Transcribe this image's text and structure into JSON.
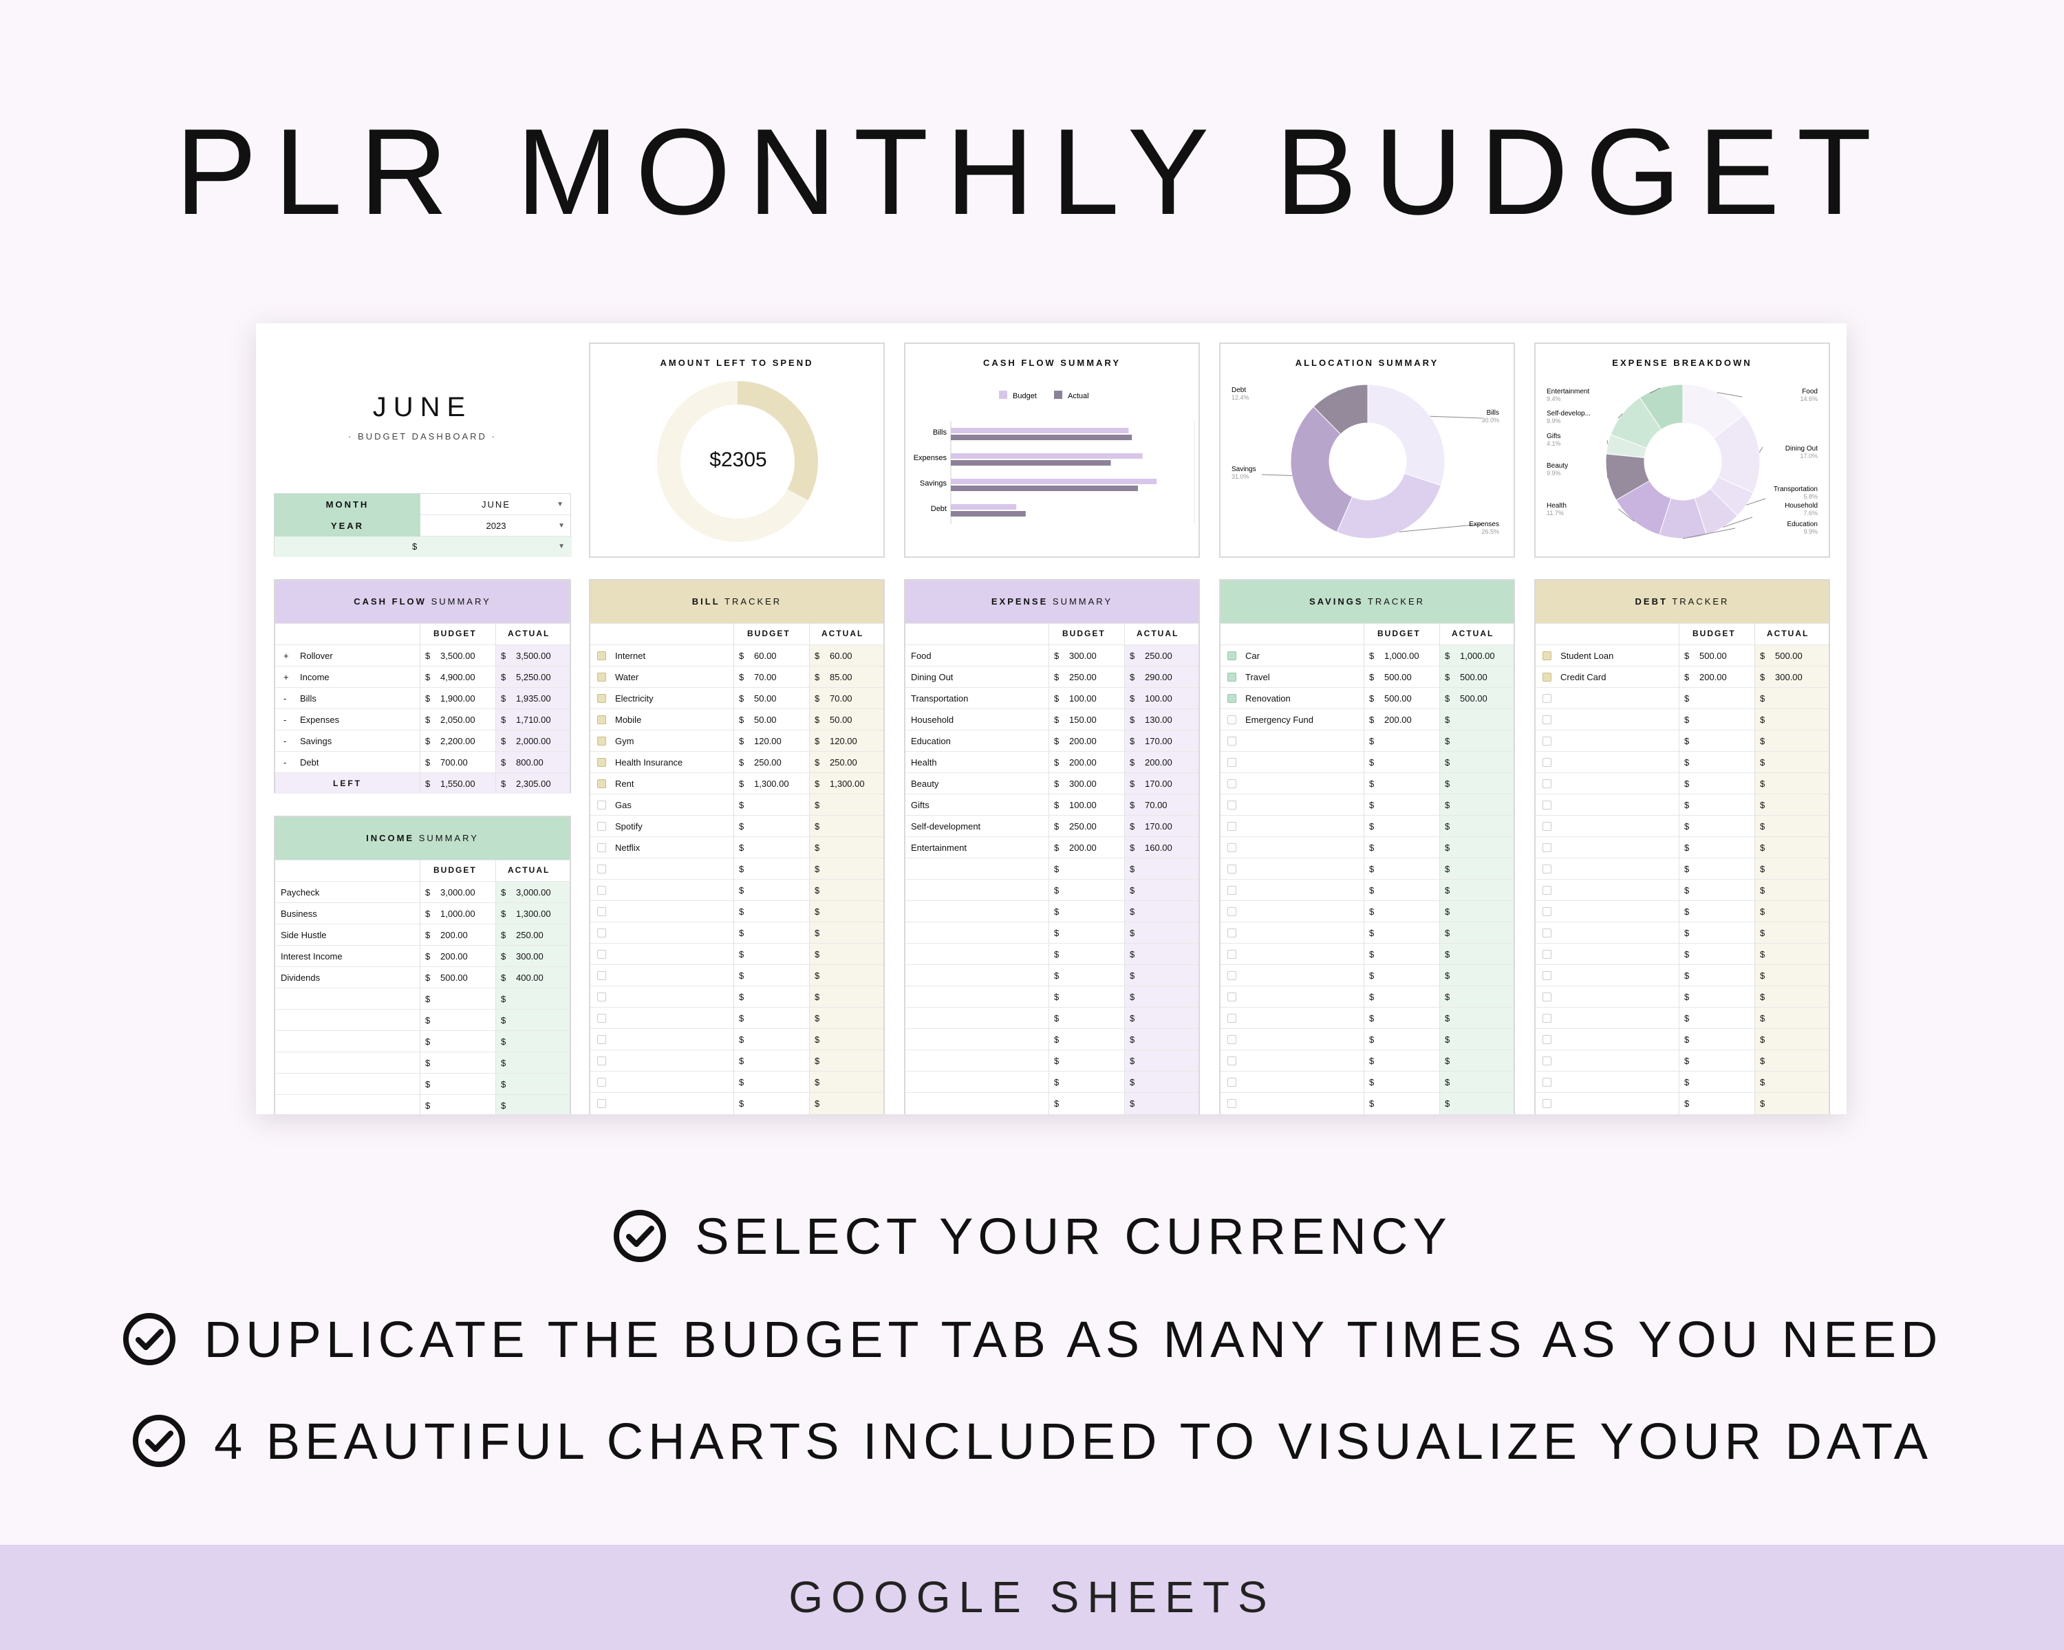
{
  "title": "PLR MONTHLY BUDGET",
  "dashboard": {
    "month_title": "JUNE",
    "subtitle": "BUDGET DASHBOARD",
    "month_label": "MONTH",
    "month_value": "JUNE",
    "year_label": "YEAR",
    "year_value": "2023",
    "currency_value": "$"
  },
  "amount_left": {
    "title": "AMOUNT LEFT TO SPEND",
    "value": "$2305",
    "fraction_left": 0.33
  },
  "cash_flow_chart": {
    "title": "CASH FLOW SUMMARY",
    "legend": [
      "Budget",
      "Actual"
    ],
    "colors": {
      "budget": "#d7c6ea",
      "actual": "#8d8199"
    },
    "chart_data": {
      "type": "bar",
      "orientation": "horizontal",
      "categories": [
        "Bills",
        "Expenses",
        "Savings",
        "Debt"
      ],
      "series": [
        {
          "name": "Budget",
          "values": [
            1900,
            2050,
            2200,
            700
          ]
        },
        {
          "name": "Actual",
          "values": [
            1935,
            1710,
            2000,
            800
          ]
        }
      ]
    }
  },
  "allocation_chart": {
    "title": "ALLOCATION SUMMARY",
    "chart_data": {
      "type": "pie",
      "labels": [
        "Bills",
        "Expenses",
        "Savings",
        "Debt"
      ],
      "values": [
        30.0,
        26.5,
        31.0,
        12.4
      ],
      "value_labels": [
        "30.0%",
        "26.5%",
        "31.0%",
        "12.4%"
      ],
      "colors": [
        "#efebf8",
        "#ddd0ee",
        "#b8a5cc",
        "#958a9c"
      ]
    }
  },
  "expense_chart": {
    "title": "EXPENSE BREAKDOWN",
    "chart_data": {
      "type": "pie",
      "labels": [
        "Food",
        "Dining Out",
        "Transportation",
        "Household",
        "Education",
        "Health",
        "Beauty",
        "Gifts",
        "Self-develop...",
        "Entertainment"
      ],
      "values": [
        14.6,
        17.0,
        5.8,
        7.6,
        9.9,
        11.7,
        9.9,
        4.1,
        9.9,
        9.4
      ],
      "value_labels": [
        "14.6%",
        "17.0%",
        "5.8%",
        "7.6%",
        "9.9%",
        "11.7%",
        "9.9%",
        "4.1%",
        "9.9%",
        "9.4%"
      ],
      "colors": [
        "#f6f3fb",
        "#efe9f7",
        "#ebe3f5",
        "#e3d7f0",
        "#d8c8ea",
        "#c9b4df",
        "#978c9e",
        "#dfeee4",
        "#cde7d6",
        "#b9dcc6"
      ]
    }
  },
  "cash_flow": {
    "title_bold": "CASH FLOW",
    "title_rest": "SUMMARY",
    "budget_header": "BUDGET",
    "actual_header": "ACTUAL",
    "rows": [
      {
        "sign": "+",
        "label": "Rollover",
        "budget": "3,500.00",
        "actual": "3,500.00"
      },
      {
        "sign": "+",
        "label": "Income",
        "budget": "4,900.00",
        "actual": "5,250.00"
      },
      {
        "sign": "-",
        "label": "Bills",
        "budget": "1,900.00",
        "actual": "1,935.00"
      },
      {
        "sign": "-",
        "label": "Expenses",
        "budget": "2,050.00",
        "actual": "1,710.00"
      },
      {
        "sign": "-",
        "label": "Savings",
        "budget": "2,200.00",
        "actual": "2,000.00"
      },
      {
        "sign": "-",
        "label": "Debt",
        "budget": "700.00",
        "actual": "800.00"
      }
    ],
    "total": {
      "label": "LEFT",
      "budget": "1,550.00",
      "actual": "2,305.00"
    }
  },
  "income": {
    "title_bold": "INCOME",
    "title_rest": "SUMMARY",
    "budget_header": "BUDGET",
    "actual_header": "ACTUAL",
    "rows": [
      {
        "label": "Paycheck",
        "budget": "3,000.00",
        "actual": "3,000.00"
      },
      {
        "label": "Business",
        "budget": "1,000.00",
        "actual": "1,300.00"
      },
      {
        "label": "Side Hustle",
        "budget": "200.00",
        "actual": "250.00"
      },
      {
        "label": "Interest Income",
        "budget": "200.00",
        "actual": "300.00"
      },
      {
        "label": "Dividends",
        "budget": "500.00",
        "actual": "400.00"
      },
      {
        "label": "",
        "budget": "",
        "actual": ""
      },
      {
        "label": "",
        "budget": "",
        "actual": ""
      },
      {
        "label": "",
        "budget": "",
        "actual": ""
      },
      {
        "label": "",
        "budget": "",
        "actual": ""
      },
      {
        "label": "",
        "budget": "",
        "actual": ""
      },
      {
        "label": "",
        "budget": "",
        "actual": ""
      }
    ]
  },
  "bills": {
    "title_bold": "BILL",
    "title_rest": "TRACKER",
    "budget_header": "BUDGET",
    "actual_header": "ACTUAL",
    "rows": [
      {
        "checked": true,
        "label": "Internet",
        "budget": "60.00",
        "actual": "60.00"
      },
      {
        "checked": true,
        "label": "Water",
        "budget": "70.00",
        "actual": "85.00"
      },
      {
        "checked": true,
        "label": "Electricity",
        "budget": "50.00",
        "actual": "70.00"
      },
      {
        "checked": true,
        "label": "Mobile",
        "budget": "50.00",
        "actual": "50.00"
      },
      {
        "checked": true,
        "label": "Gym",
        "budget": "120.00",
        "actual": "120.00"
      },
      {
        "checked": true,
        "label": "Health Insurance",
        "budget": "250.00",
        "actual": "250.00"
      },
      {
        "checked": true,
        "label": "Rent",
        "budget": "1,300.00",
        "actual": "1,300.00"
      },
      {
        "checked": false,
        "label": "Gas",
        "budget": "",
        "actual": ""
      },
      {
        "checked": false,
        "label": "Spotify",
        "budget": "",
        "actual": ""
      },
      {
        "checked": false,
        "label": "Netflix",
        "budget": "",
        "actual": ""
      },
      {
        "checked": false,
        "label": "",
        "budget": "",
        "actual": ""
      },
      {
        "checked": false,
        "label": "",
        "budget": "",
        "actual": ""
      },
      {
        "checked": false,
        "label": "",
        "budget": "",
        "actual": ""
      },
      {
        "checked": false,
        "label": "",
        "budget": "",
        "actual": ""
      },
      {
        "checked": false,
        "label": "",
        "budget": "",
        "actual": ""
      },
      {
        "checked": false,
        "label": "",
        "budget": "",
        "actual": ""
      },
      {
        "checked": false,
        "label": "",
        "budget": "",
        "actual": ""
      },
      {
        "checked": false,
        "label": "",
        "budget": "",
        "actual": ""
      },
      {
        "checked": false,
        "label": "",
        "budget": "",
        "actual": ""
      },
      {
        "checked": false,
        "label": "",
        "budget": "",
        "actual": ""
      },
      {
        "checked": false,
        "label": "",
        "budget": "",
        "actual": ""
      },
      {
        "checked": false,
        "label": "",
        "budget": "",
        "actual": ""
      }
    ]
  },
  "expenses": {
    "title_bold": "EXPENSE",
    "title_rest": "SUMMARY",
    "budget_header": "BUDGET",
    "actual_header": "ACTUAL",
    "rows": [
      {
        "label": "Food",
        "budget": "300.00",
        "actual": "250.00"
      },
      {
        "label": "Dining Out",
        "budget": "250.00",
        "actual": "290.00"
      },
      {
        "label": "Transportation",
        "budget": "100.00",
        "actual": "100.00"
      },
      {
        "label": "Household",
        "budget": "150.00",
        "actual": "130.00"
      },
      {
        "label": "Education",
        "budget": "200.00",
        "actual": "170.00"
      },
      {
        "label": "Health",
        "budget": "200.00",
        "actual": "200.00"
      },
      {
        "label": "Beauty",
        "budget": "300.00",
        "actual": "170.00"
      },
      {
        "label": "Gifts",
        "budget": "100.00",
        "actual": "70.00"
      },
      {
        "label": "Self-development",
        "budget": "250.00",
        "actual": "170.00"
      },
      {
        "label": "Entertainment",
        "budget": "200.00",
        "actual": "160.00"
      },
      {
        "label": "",
        "budget": "",
        "actual": ""
      },
      {
        "label": "",
        "budget": "",
        "actual": ""
      },
      {
        "label": "",
        "budget": "",
        "actual": ""
      },
      {
        "label": "",
        "budget": "",
        "actual": ""
      },
      {
        "label": "",
        "budget": "",
        "actual": ""
      },
      {
        "label": "",
        "budget": "",
        "actual": ""
      },
      {
        "label": "",
        "budget": "",
        "actual": ""
      },
      {
        "label": "",
        "budget": "",
        "actual": ""
      },
      {
        "label": "",
        "budget": "",
        "actual": ""
      },
      {
        "label": "",
        "budget": "",
        "actual": ""
      },
      {
        "label": "",
        "budget": "",
        "actual": ""
      },
      {
        "label": "",
        "budget": "",
        "actual": ""
      }
    ]
  },
  "savings": {
    "title_bold": "SAVINGS",
    "title_rest": "TRACKER",
    "budget_header": "BUDGET",
    "actual_header": "ACTUAL",
    "rows": [
      {
        "checked": true,
        "label": "Car",
        "budget": "1,000.00",
        "actual": "1,000.00"
      },
      {
        "checked": true,
        "label": "Travel",
        "budget": "500.00",
        "actual": "500.00"
      },
      {
        "checked": true,
        "label": "Renovation",
        "budget": "500.00",
        "actual": "500.00"
      },
      {
        "checked": false,
        "label": "Emergency Fund",
        "budget": "200.00",
        "actual": ""
      },
      {
        "checked": false,
        "label": "",
        "budget": "",
        "actual": ""
      },
      {
        "checked": false,
        "label": "",
        "budget": "",
        "actual": ""
      },
      {
        "checked": false,
        "label": "",
        "budget": "",
        "actual": ""
      },
      {
        "checked": false,
        "label": "",
        "budget": "",
        "actual": ""
      },
      {
        "checked": false,
        "label": "",
        "budget": "",
        "actual": ""
      },
      {
        "checked": false,
        "label": "",
        "budget": "",
        "actual": ""
      },
      {
        "checked": false,
        "label": "",
        "budget": "",
        "actual": ""
      },
      {
        "checked": false,
        "label": "",
        "budget": "",
        "actual": ""
      },
      {
        "checked": false,
        "label": "",
        "budget": "",
        "actual": ""
      },
      {
        "checked": false,
        "label": "",
        "budget": "",
        "actual": ""
      },
      {
        "checked": false,
        "label": "",
        "budget": "",
        "actual": ""
      },
      {
        "checked": false,
        "label": "",
        "budget": "",
        "actual": ""
      },
      {
        "checked": false,
        "label": "",
        "budget": "",
        "actual": ""
      },
      {
        "checked": false,
        "label": "",
        "budget": "",
        "actual": ""
      },
      {
        "checked": false,
        "label": "",
        "budget": "",
        "actual": ""
      },
      {
        "checked": false,
        "label": "",
        "budget": "",
        "actual": ""
      },
      {
        "checked": false,
        "label": "",
        "budget": "",
        "actual": ""
      },
      {
        "checked": false,
        "label": "",
        "budget": "",
        "actual": ""
      }
    ]
  },
  "debt": {
    "title_bold": "DEBT",
    "title_rest": "TRACKER",
    "budget_header": "BUDGET",
    "actual_header": "ACTUAL",
    "rows": [
      {
        "checked": true,
        "label": "Student Loan",
        "budget": "500.00",
        "actual": "500.00"
      },
      {
        "checked": true,
        "label": "Credit Card",
        "budget": "200.00",
        "actual": "300.00"
      },
      {
        "checked": false,
        "label": "",
        "budget": "",
        "actual": ""
      },
      {
        "checked": false,
        "label": "",
        "budget": "",
        "actual": ""
      },
      {
        "checked": false,
        "label": "",
        "budget": "",
        "actual": ""
      },
      {
        "checked": false,
        "label": "",
        "budget": "",
        "actual": ""
      },
      {
        "checked": false,
        "label": "",
        "budget": "",
        "actual": ""
      },
      {
        "checked": false,
        "label": "",
        "budget": "",
        "actual": ""
      },
      {
        "checked": false,
        "label": "",
        "budget": "",
        "actual": ""
      },
      {
        "checked": false,
        "label": "",
        "budget": "",
        "actual": ""
      },
      {
        "checked": false,
        "label": "",
        "budget": "",
        "actual": ""
      },
      {
        "checked": false,
        "label": "",
        "budget": "",
        "actual": ""
      },
      {
        "checked": false,
        "label": "",
        "budget": "",
        "actual": ""
      },
      {
        "checked": false,
        "label": "",
        "budget": "",
        "actual": ""
      },
      {
        "checked": false,
        "label": "",
        "budget": "",
        "actual": ""
      },
      {
        "checked": false,
        "label": "",
        "budget": "",
        "actual": ""
      },
      {
        "checked": false,
        "label": "",
        "budget": "",
        "actual": ""
      },
      {
        "checked": false,
        "label": "",
        "budget": "",
        "actual": ""
      },
      {
        "checked": false,
        "label": "",
        "budget": "",
        "actual": ""
      },
      {
        "checked": false,
        "label": "",
        "budget": "",
        "actual": ""
      },
      {
        "checked": false,
        "label": "",
        "budget": "",
        "actual": ""
      },
      {
        "checked": false,
        "label": "",
        "budget": "",
        "actual": ""
      }
    ]
  },
  "currency_symbol": "$",
  "features": [
    {
      "icon": "check-circle-icon",
      "text": "SELECT YOUR CURRENCY"
    },
    {
      "icon": "check-circle-icon",
      "text": "DUPLICATE THE BUDGET TAB AS MANY TIMES AS YOU NEED"
    },
    {
      "icon": "check-circle-icon",
      "text": "4 BEAUTIFUL CHARTS INCLUDED TO VISUALIZE YOUR DATA"
    }
  ],
  "footer": "GOOGLE SHEETS",
  "colors": {
    "purple_header": "#ddd0ee",
    "purple_light": "#f2edf8",
    "green_header": "#bfe0cb",
    "green_light": "#eaf5ee",
    "gold_header": "#e8dfbf",
    "gold_light": "#f8f5ea",
    "footer_bg": "#e0d3ef"
  }
}
